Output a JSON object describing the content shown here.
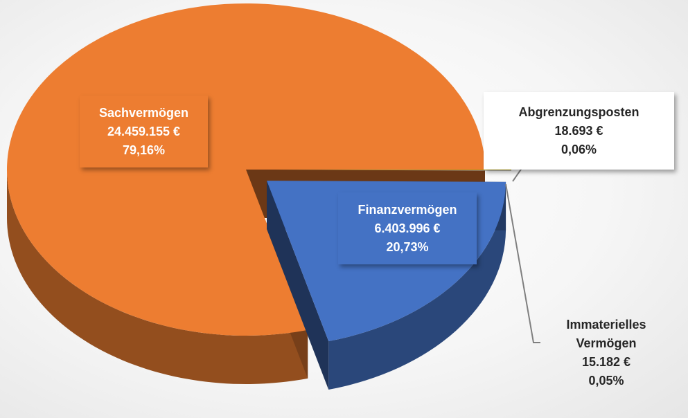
{
  "chart_data": {
    "type": "pie",
    "categories": [
      "Abgrenzungsposten",
      "Immaterielles Vermögen",
      "Finanzvermögen",
      "Sachvermögen"
    ],
    "values": [
      0.06,
      0.05,
      20.73,
      79.16
    ],
    "value_labels": [
      "0,06%",
      "0,05%",
      "20,73%",
      "79,16%"
    ],
    "amount_labels": [
      "18.693 €",
      "15.182 €",
      "6.403.996 €",
      "24.459.155 €"
    ],
    "colors": [
      "#BFA800",
      "#A5A5A5",
      "#4472C4",
      "#ED7D31"
    ]
  }
}
